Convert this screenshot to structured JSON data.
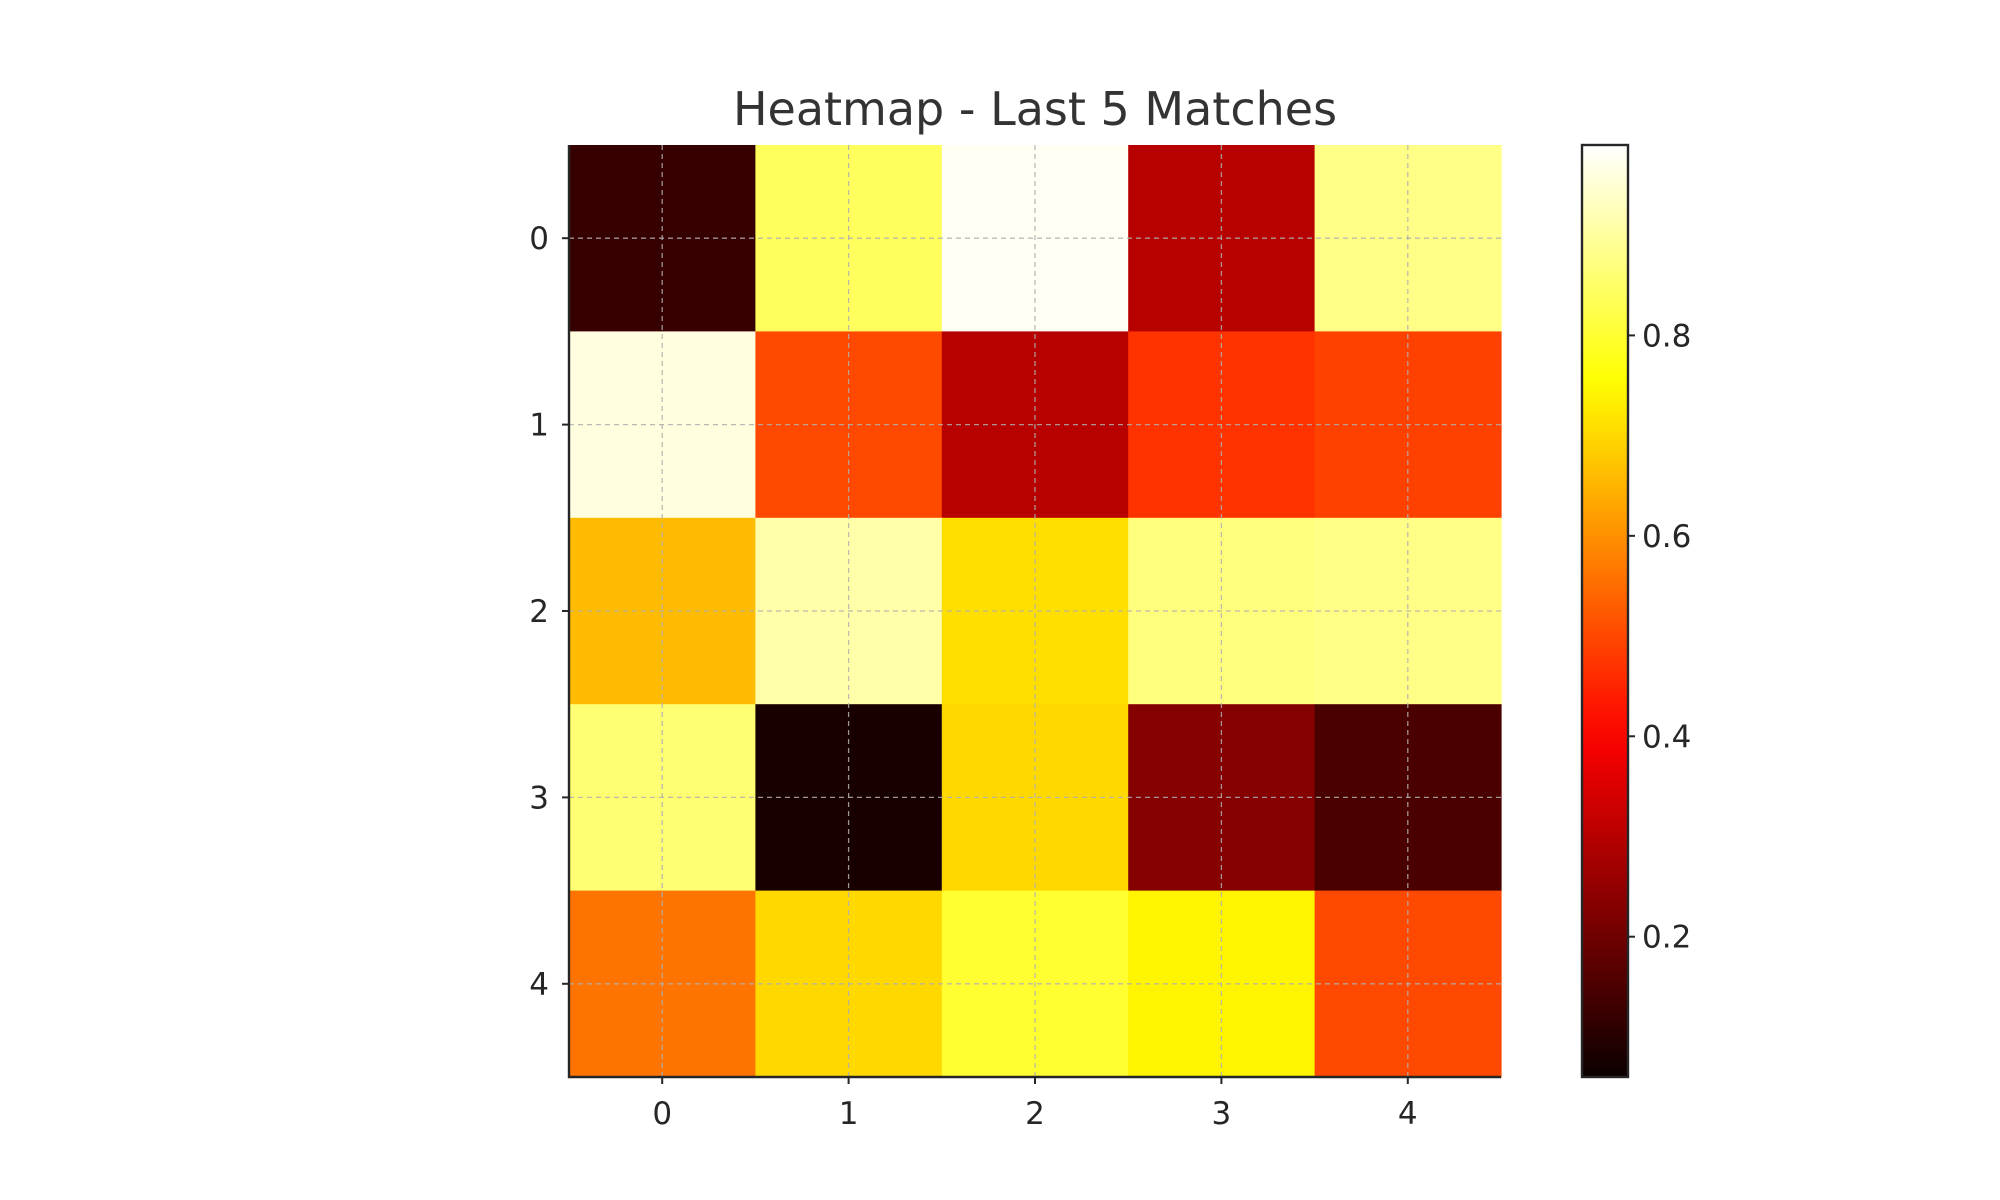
{
  "chart_data": {
    "type": "heatmap",
    "title": "Heatmap - Last 5 Matches",
    "xlabel": "",
    "ylabel": "",
    "x_categories": [
      "0",
      "1",
      "2",
      "3",
      "4"
    ],
    "y_categories": [
      "0",
      "1",
      "2",
      "3",
      "4"
    ],
    "values": [
      [
        0.12,
        0.84,
        0.98,
        0.3,
        0.88
      ],
      [
        0.96,
        0.5,
        0.3,
        0.47,
        0.49
      ],
      [
        0.66,
        0.91,
        0.71,
        0.87,
        0.88
      ],
      [
        0.86,
        0.08,
        0.7,
        0.23,
        0.15
      ],
      [
        0.56,
        0.7,
        0.8,
        0.74,
        0.5
      ]
    ],
    "colormap": "hot",
    "colorbar": {
      "range": [
        0.06,
        0.99
      ],
      "ticks": [
        0.2,
        0.4,
        0.6,
        0.8
      ],
      "tick_labels": [
        "0.2",
        "0.4",
        "0.6",
        "0.8"
      ]
    },
    "grid": true,
    "grid_style": "dashed"
  }
}
